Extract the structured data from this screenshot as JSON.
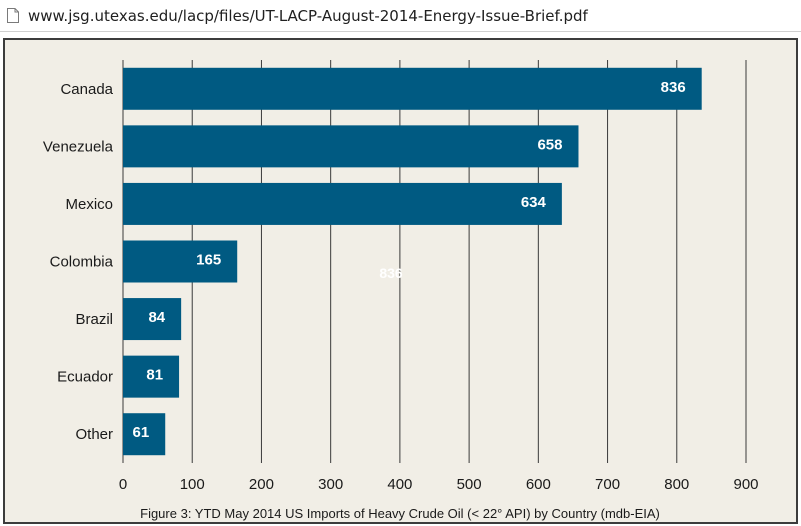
{
  "browser": {
    "url": "www.jsg.utexas.edu/lacp/files/UT-LACP-August-2014-Energy-Issue-Brief.pdf",
    "page_icon": "document-icon"
  },
  "chart_data": {
    "type": "bar",
    "orientation": "horizontal",
    "categories": [
      "Canada",
      "Venezuela",
      "Mexico",
      "Colombia",
      "Brazil",
      "Ecuador",
      "Other"
    ],
    "values": [
      836,
      658,
      634,
      165,
      84,
      81,
      61
    ],
    "value_labels": [
      "836",
      "658",
      "634",
      "165",
      "84",
      "81",
      "61"
    ],
    "xlim": [
      0,
      900
    ],
    "xticks": [
      0,
      100,
      200,
      300,
      400,
      500,
      600,
      700,
      800,
      900
    ],
    "grid": "vertical",
    "bar_color": "#005a82",
    "background_color": "#f1eee6",
    "stray_label": "836",
    "caption": "Figure 3: YTD May 2014 US Imports of Heavy Crude Oil (< 22° API) by Country (mdb-EIA)"
  }
}
